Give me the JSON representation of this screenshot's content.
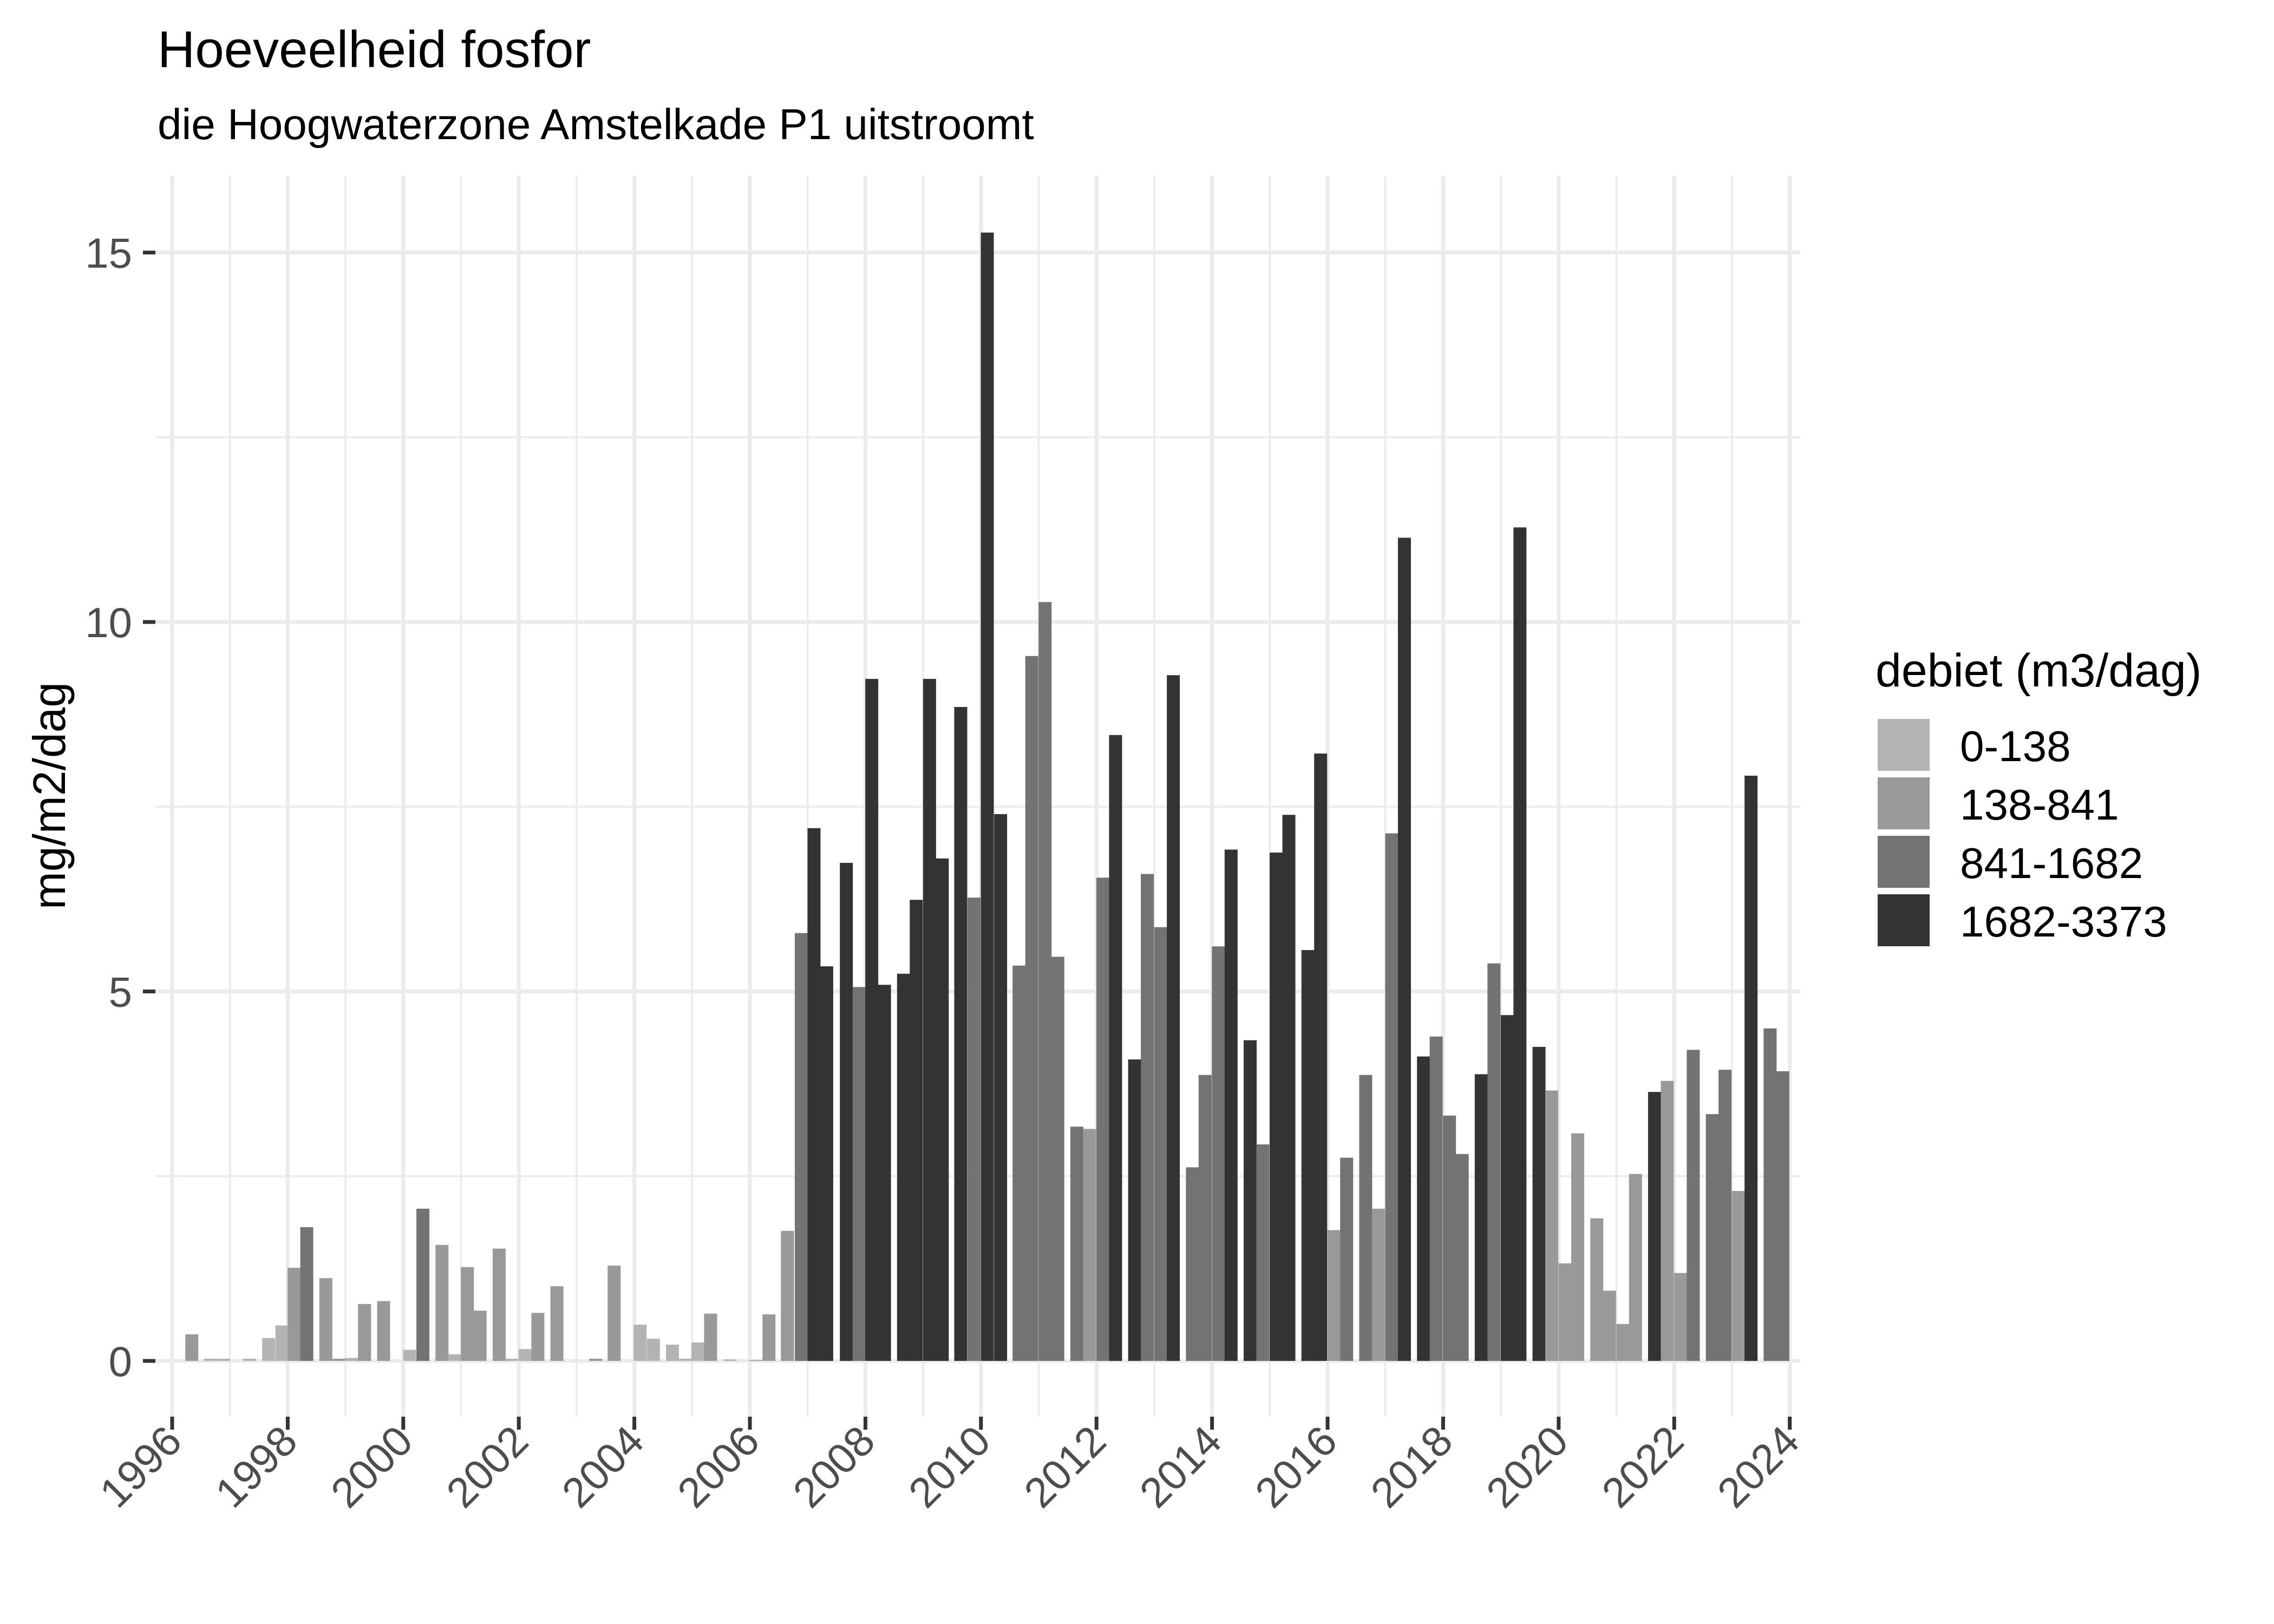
{
  "title": "Hoeveelheid fosfor",
  "subtitle": "die Hoogwaterzone Amstelkade P1 uitstroomt",
  "y_axis_title": "mg/m2/dag",
  "legend": {
    "title": "debiet (m3/dag)",
    "items": [
      {
        "label": "0-138",
        "color": "#B3B3B3"
      },
      {
        "label": "138-841",
        "color": "#999999"
      },
      {
        "label": "841-1682",
        "color": "#737373"
      },
      {
        "label": "1682-3373",
        "color": "#333333"
      }
    ]
  },
  "chart_data": {
    "type": "bar",
    "title": "Hoeveelheid fosfor",
    "subtitle": "die Hoogwaterzone Amstelkade P1 uitstroomt",
    "xlabel": "",
    "ylabel": "mg/m2/dag",
    "x_ticks": [
      "1996",
      "1998",
      "2000",
      "2002",
      "2004",
      "2006",
      "2008",
      "2010",
      "2012",
      "2014",
      "2016",
      "2018",
      "2020",
      "2022",
      "2024"
    ],
    "y_ticks": [
      "0",
      "5",
      "10",
      "15"
    ],
    "xlim": [
      1995.7,
      2024.3
    ],
    "ylim": [
      -0.75,
      16
    ],
    "grid": true,
    "legend_position": "right",
    "legend_title": "debiet (m3/dag)",
    "series": [
      {
        "name": "0-138",
        "color": "#B3B3B3"
      },
      {
        "name": "138-841",
        "color": "#999999"
      },
      {
        "name": "841-1682",
        "color": "#737373"
      },
      {
        "name": "1682-3373",
        "color": "#333333"
      }
    ],
    "bars": [
      {
        "x": 1996.34,
        "y": 0.36,
        "group": "138-841"
      },
      {
        "x": 1996.66,
        "y": 0.03,
        "group": "0-138"
      },
      {
        "x": 1996.89,
        "y": 0.03,
        "group": "0-138"
      },
      {
        "x": 1997.34,
        "y": 0.03,
        "group": "0-138"
      },
      {
        "x": 1997.67,
        "y": 0.31,
        "group": "0-138"
      },
      {
        "x": 1997.9,
        "y": 0.48,
        "group": "0-138"
      },
      {
        "x": 1998.11,
        "y": 1.26,
        "group": "138-841"
      },
      {
        "x": 1998.33,
        "y": 1.81,
        "group": "841-1682"
      },
      {
        "x": 1998.66,
        "y": 1.12,
        "group": "138-841"
      },
      {
        "x": 1998.89,
        "y": 0.03,
        "group": "138-841"
      },
      {
        "x": 1999.11,
        "y": 0.04,
        "group": "0-138"
      },
      {
        "x": 1999.33,
        "y": 0.77,
        "group": "138-841"
      },
      {
        "x": 1999.66,
        "y": 0.81,
        "group": "138-841"
      },
      {
        "x": 2000.11,
        "y": 0.15,
        "group": "0-138"
      },
      {
        "x": 2000.34,
        "y": 2.06,
        "group": "841-1682"
      },
      {
        "x": 2000.67,
        "y": 1.57,
        "group": "138-841"
      },
      {
        "x": 2000.89,
        "y": 0.09,
        "group": "0-138"
      },
      {
        "x": 2001.11,
        "y": 1.27,
        "group": "138-841"
      },
      {
        "x": 2001.33,
        "y": 0.68,
        "group": "138-841"
      },
      {
        "x": 2001.66,
        "y": 1.52,
        "group": "138-841"
      },
      {
        "x": 2001.88,
        "y": 0.03,
        "group": "0-138"
      },
      {
        "x": 2002.11,
        "y": 0.16,
        "group": "0-138"
      },
      {
        "x": 2002.33,
        "y": 0.65,
        "group": "138-841"
      },
      {
        "x": 2002.66,
        "y": 1.01,
        "group": "138-841"
      },
      {
        "x": 2003.33,
        "y": 0.03,
        "group": "138-841"
      },
      {
        "x": 2003.65,
        "y": 1.29,
        "group": "138-841"
      },
      {
        "x": 2004.1,
        "y": 0.49,
        "group": "0-138"
      },
      {
        "x": 2004.33,
        "y": 0.3,
        "group": "0-138"
      },
      {
        "x": 2004.66,
        "y": 0.22,
        "group": "0-138"
      },
      {
        "x": 2004.88,
        "y": 0.03,
        "group": "0-138"
      },
      {
        "x": 2005.1,
        "y": 0.25,
        "group": "0-138"
      },
      {
        "x": 2005.32,
        "y": 0.64,
        "group": "138-841"
      },
      {
        "x": 2005.66,
        "y": 0.02,
        "group": "0-138"
      },
      {
        "x": 2006.1,
        "y": 0.01,
        "group": "138-841"
      },
      {
        "x": 2006.33,
        "y": 0.63,
        "group": "138-841"
      },
      {
        "x": 2006.65,
        "y": 1.76,
        "group": "138-841"
      },
      {
        "x": 2006.89,
        "y": 5.79,
        "group": "841-1682"
      },
      {
        "x": 2007.11,
        "y": 7.21,
        "group": "1682-3373"
      },
      {
        "x": 2007.33,
        "y": 5.34,
        "group": "1682-3373"
      },
      {
        "x": 2007.67,
        "y": 6.74,
        "group": "1682-3373"
      },
      {
        "x": 2007.89,
        "y": 5.06,
        "group": "841-1682"
      },
      {
        "x": 2008.11,
        "y": 9.23,
        "group": "1682-3373"
      },
      {
        "x": 2008.33,
        "y": 5.09,
        "group": "1682-3373"
      },
      {
        "x": 2008.66,
        "y": 5.24,
        "group": "1682-3373"
      },
      {
        "x": 2008.88,
        "y": 6.24,
        "group": "1682-3373"
      },
      {
        "x": 2009.11,
        "y": 9.23,
        "group": "1682-3373"
      },
      {
        "x": 2009.33,
        "y": 6.8,
        "group": "1682-3373"
      },
      {
        "x": 2009.65,
        "y": 8.85,
        "group": "1682-3373"
      },
      {
        "x": 2009.88,
        "y": 6.27,
        "group": "841-1682"
      },
      {
        "x": 2010.11,
        "y": 15.27,
        "group": "1682-3373"
      },
      {
        "x": 2010.34,
        "y": 7.4,
        "group": "1682-3373"
      },
      {
        "x": 2010.66,
        "y": 5.35,
        "group": "841-1682"
      },
      {
        "x": 2010.88,
        "y": 9.54,
        "group": "841-1682"
      },
      {
        "x": 2011.11,
        "y": 10.27,
        "group": "841-1682"
      },
      {
        "x": 2011.33,
        "y": 5.47,
        "group": "841-1682"
      },
      {
        "x": 2011.66,
        "y": 3.17,
        "group": "841-1682"
      },
      {
        "x": 2011.88,
        "y": 3.14,
        "group": "138-841"
      },
      {
        "x": 2012.11,
        "y": 6.54,
        "group": "841-1682"
      },
      {
        "x": 2012.33,
        "y": 8.47,
        "group": "1682-3373"
      },
      {
        "x": 2012.66,
        "y": 4.08,
        "group": "1682-3373"
      },
      {
        "x": 2012.88,
        "y": 6.59,
        "group": "841-1682"
      },
      {
        "x": 2013.11,
        "y": 5.87,
        "group": "841-1682"
      },
      {
        "x": 2013.33,
        "y": 9.28,
        "group": "1682-3373"
      },
      {
        "x": 2013.66,
        "y": 2.62,
        "group": "841-1682"
      },
      {
        "x": 2013.88,
        "y": 3.87,
        "group": "841-1682"
      },
      {
        "x": 2014.11,
        "y": 5.61,
        "group": "841-1682"
      },
      {
        "x": 2014.33,
        "y": 6.92,
        "group": "1682-3373"
      },
      {
        "x": 2014.66,
        "y": 4.34,
        "group": "1682-3373"
      },
      {
        "x": 2014.88,
        "y": 2.93,
        "group": "841-1682"
      },
      {
        "x": 2015.11,
        "y": 6.88,
        "group": "1682-3373"
      },
      {
        "x": 2015.33,
        "y": 7.39,
        "group": "1682-3373"
      },
      {
        "x": 2015.66,
        "y": 5.56,
        "group": "1682-3373"
      },
      {
        "x": 2015.88,
        "y": 8.22,
        "group": "1682-3373"
      },
      {
        "x": 2016.11,
        "y": 1.77,
        "group": "138-841"
      },
      {
        "x": 2016.33,
        "y": 2.75,
        "group": "841-1682"
      },
      {
        "x": 2016.66,
        "y": 3.87,
        "group": "841-1682"
      },
      {
        "x": 2016.88,
        "y": 2.06,
        "group": "138-841"
      },
      {
        "x": 2017.11,
        "y": 7.14,
        "group": "841-1682"
      },
      {
        "x": 2017.33,
        "y": 11.14,
        "group": "1682-3373"
      },
      {
        "x": 2017.66,
        "y": 4.12,
        "group": "1682-3373"
      },
      {
        "x": 2017.88,
        "y": 4.39,
        "group": "841-1682"
      },
      {
        "x": 2018.11,
        "y": 3.32,
        "group": "841-1682"
      },
      {
        "x": 2018.33,
        "y": 2.8,
        "group": "841-1682"
      },
      {
        "x": 2018.66,
        "y": 3.88,
        "group": "1682-3373"
      },
      {
        "x": 2018.88,
        "y": 5.38,
        "group": "841-1682"
      },
      {
        "x": 2019.11,
        "y": 4.68,
        "group": "1682-3373"
      },
      {
        "x": 2019.33,
        "y": 11.28,
        "group": "1682-3373"
      },
      {
        "x": 2019.66,
        "y": 4.25,
        "group": "1682-3373"
      },
      {
        "x": 2019.88,
        "y": 3.66,
        "group": "138-841"
      },
      {
        "x": 2020.11,
        "y": 1.32,
        "group": "138-841"
      },
      {
        "x": 2020.33,
        "y": 3.08,
        "group": "138-841"
      },
      {
        "x": 2020.66,
        "y": 1.93,
        "group": "138-841"
      },
      {
        "x": 2020.88,
        "y": 0.95,
        "group": "138-841"
      },
      {
        "x": 2021.11,
        "y": 0.5,
        "group": "138-841"
      },
      {
        "x": 2021.33,
        "y": 2.53,
        "group": "138-841"
      },
      {
        "x": 2021.66,
        "y": 3.64,
        "group": "1682-3373"
      },
      {
        "x": 2021.88,
        "y": 3.79,
        "group": "138-841"
      },
      {
        "x": 2022.11,
        "y": 1.19,
        "group": "138-841"
      },
      {
        "x": 2022.33,
        "y": 4.21,
        "group": "841-1682"
      },
      {
        "x": 2022.66,
        "y": 3.34,
        "group": "841-1682"
      },
      {
        "x": 2022.88,
        "y": 3.94,
        "group": "841-1682"
      },
      {
        "x": 2023.11,
        "y": 2.3,
        "group": "138-841"
      },
      {
        "x": 2023.33,
        "y": 7.92,
        "group": "1682-3373"
      },
      {
        "x": 2023.66,
        "y": 4.5,
        "group": "841-1682"
      },
      {
        "x": 2023.88,
        "y": 3.92,
        "group": "841-1682"
      }
    ]
  }
}
